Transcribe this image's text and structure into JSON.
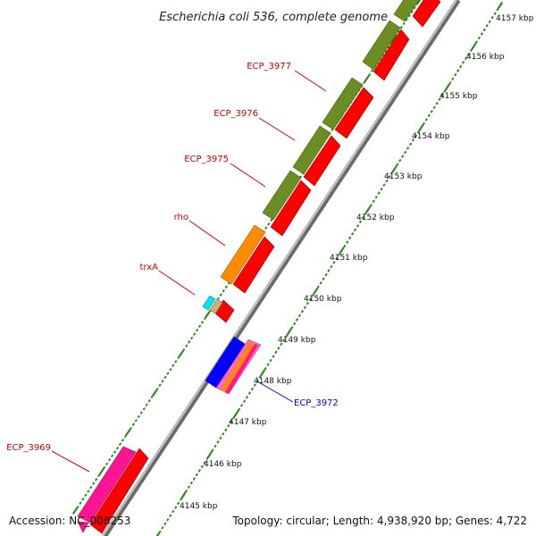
{
  "title": "Escherichia coli 536, complete genome",
  "footer": {
    "accession": "Accession: NC_008253",
    "topology": "Topology: circular; Length: 4,938,920 bp; Genes: 4,722"
  },
  "colors": {
    "backbone": "#9a9a9a",
    "tick": "#2e8b1f",
    "cds_red": "#ff0000",
    "cds_olive": "#6b8e23",
    "cds_orange": "#ff8c00",
    "cds_blue": "#0000ff",
    "cds_magenta": "#ff1493",
    "label_red": "#cc0000",
    "label_blue": "#0000cc"
  },
  "kbp_labels": [
    "4145 kbp",
    "4146 kbp",
    "4147 kbp",
    "4148 kbp",
    "4149 kbp",
    "4150 kbp",
    "4151 kbp",
    "4152 kbp",
    "4153 kbp",
    "4154 kbp",
    "4155 kbp",
    "4156 kbp",
    "4157 kbp"
  ],
  "gene_labels": [
    {
      "text": "ECP_3977",
      "color": "red"
    },
    {
      "text": "ECP_3976",
      "color": "red"
    },
    {
      "text": "ECP_3975",
      "color": "red"
    },
    {
      "text": "rho",
      "color": "red"
    },
    {
      "text": "trxA",
      "color": "red"
    },
    {
      "text": "ECP_3972",
      "color": "blue"
    },
    {
      "text": "ECP_3969",
      "color": "red"
    }
  ]
}
